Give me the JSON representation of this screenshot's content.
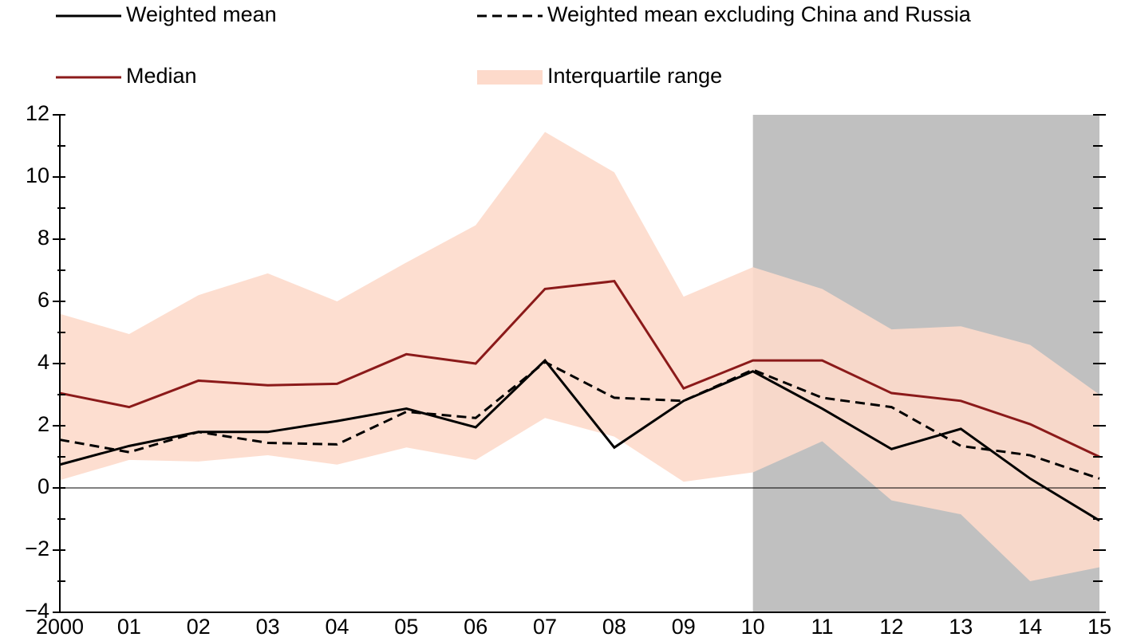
{
  "chart_data": {
    "type": "line",
    "categories": [
      "2000",
      "01",
      "02",
      "03",
      "04",
      "05",
      "06",
      "07",
      "08",
      "09",
      "10",
      "11",
      "12",
      "13",
      "14",
      "15"
    ],
    "series": [
      {
        "name": "Weighted mean",
        "color": "#000000",
        "dash": false,
        "values": [
          0.75,
          1.35,
          1.8,
          1.8,
          2.15,
          2.55,
          1.95,
          4.1,
          1.3,
          2.8,
          3.75,
          2.55,
          1.25,
          1.9,
          0.3,
          -1.05
        ]
      },
      {
        "name": "Weighted mean excluding China and Russia",
        "color": "#000000",
        "dash": true,
        "values": [
          1.55,
          1.15,
          1.8,
          1.45,
          1.4,
          2.45,
          2.25,
          4.05,
          2.9,
          2.8,
          3.8,
          2.9,
          2.6,
          1.35,
          1.05,
          0.3
        ]
      },
      {
        "name": "Median",
        "color": "#8b1a1a",
        "dash": false,
        "values": [
          3.05,
          2.6,
          3.45,
          3.3,
          3.35,
          4.3,
          4.0,
          6.4,
          6.65,
          3.2,
          4.1,
          4.1,
          3.05,
          2.8,
          2.05,
          1.0
        ]
      }
    ],
    "iqr": {
      "name": "Interquartile range",
      "color": "#fddacb",
      "upper": [
        5.6,
        4.95,
        6.2,
        6.9,
        6.0,
        7.25,
        8.45,
        11.45,
        10.15,
        6.15,
        7.1,
        6.4,
        5.1,
        5.2,
        4.6,
        3.0
      ],
      "lower": [
        0.25,
        0.9,
        0.85,
        1.05,
        0.75,
        1.3,
        0.9,
        2.25,
        1.65,
        0.2,
        0.5,
        1.5,
        -0.4,
        -0.85,
        -3.0,
        -2.55
      ]
    },
    "shade": {
      "from": "10",
      "to": "15",
      "color": "#c0c0c0"
    },
    "ylim": [
      -4,
      12
    ],
    "yticks": [
      {
        "value": -4,
        "label": "−4"
      },
      {
        "value": -2,
        "label": "−2"
      },
      0,
      2,
      4,
      6,
      8,
      10,
      12
    ],
    "yticks_minor": [
      -3,
      -1,
      1,
      3,
      5,
      7,
      9,
      11
    ]
  }
}
